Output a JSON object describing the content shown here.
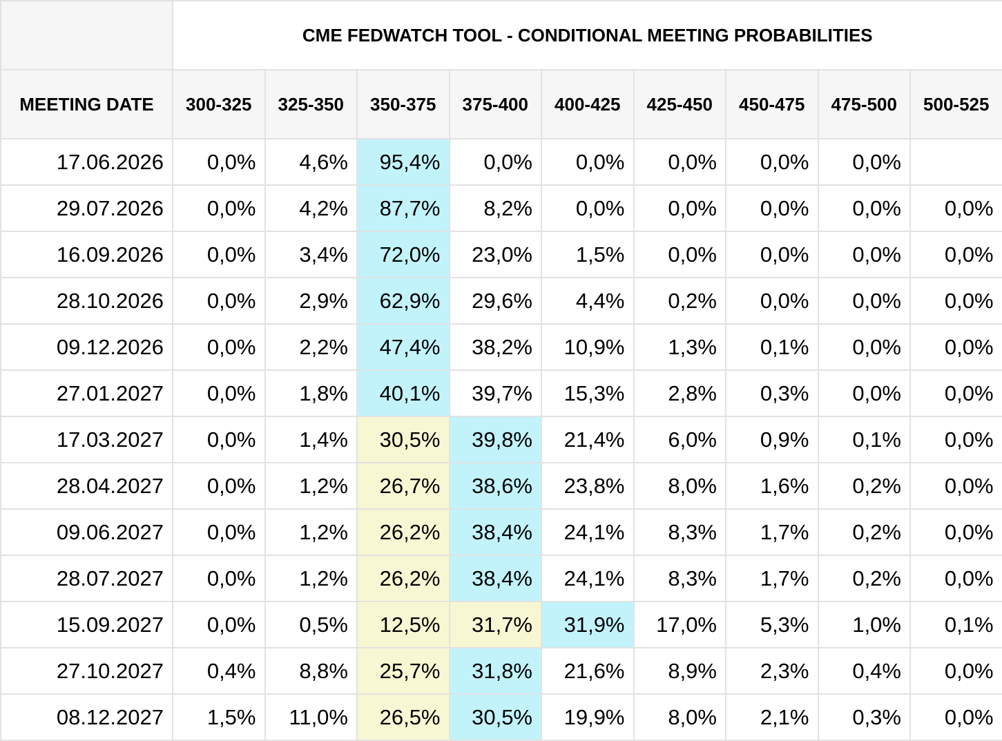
{
  "title": "CME FEDWATCH TOOL - CONDITIONAL MEETING PROBABILITIES",
  "columns": {
    "date": "MEETING DATE",
    "ranges": [
      "300-325",
      "325-350",
      "350-375",
      "375-400",
      "400-425",
      "425-450",
      "450-475",
      "475-500",
      "500-525"
    ]
  },
  "colors": {
    "max_highlight": "#c2f3fb",
    "secondary_highlight": "#f8f7d3",
    "header_bg": "#f6f6f6",
    "border": "#e2e2e2"
  },
  "rows": [
    {
      "date": "17.06.2026",
      "values": [
        "0,0%",
        "4,6%",
        "95,4%",
        "0,0%",
        "0,0%",
        "0,0%",
        "0,0%",
        "0,0%",
        ""
      ],
      "highlight": [
        "",
        "",
        "cyan",
        "",
        "",
        "",
        "",
        "",
        ""
      ]
    },
    {
      "date": "29.07.2026",
      "values": [
        "0,0%",
        "4,2%",
        "87,7%",
        "8,2%",
        "0,0%",
        "0,0%",
        "0,0%",
        "0,0%",
        "0,0%"
      ],
      "highlight": [
        "",
        "",
        "cyan",
        "",
        "",
        "",
        "",
        "",
        ""
      ]
    },
    {
      "date": "16.09.2026",
      "values": [
        "0,0%",
        "3,4%",
        "72,0%",
        "23,0%",
        "1,5%",
        "0,0%",
        "0,0%",
        "0,0%",
        "0,0%"
      ],
      "highlight": [
        "",
        "",
        "cyan",
        "",
        "",
        "",
        "",
        "",
        ""
      ]
    },
    {
      "date": "28.10.2026",
      "values": [
        "0,0%",
        "2,9%",
        "62,9%",
        "29,6%",
        "4,4%",
        "0,2%",
        "0,0%",
        "0,0%",
        "0,0%"
      ],
      "highlight": [
        "",
        "",
        "cyan",
        "",
        "",
        "",
        "",
        "",
        ""
      ]
    },
    {
      "date": "09.12.2026",
      "values": [
        "0,0%",
        "2,2%",
        "47,4%",
        "38,2%",
        "10,9%",
        "1,3%",
        "0,1%",
        "0,0%",
        "0,0%"
      ],
      "highlight": [
        "",
        "",
        "cyan",
        "",
        "",
        "",
        "",
        "",
        ""
      ]
    },
    {
      "date": "27.01.2027",
      "values": [
        "0,0%",
        "1,8%",
        "40,1%",
        "39,7%",
        "15,3%",
        "2,8%",
        "0,3%",
        "0,0%",
        "0,0%"
      ],
      "highlight": [
        "",
        "",
        "cyan",
        "",
        "",
        "",
        "",
        "",
        ""
      ]
    },
    {
      "date": "17.03.2027",
      "values": [
        "0,0%",
        "1,4%",
        "30,5%",
        "39,8%",
        "21,4%",
        "6,0%",
        "0,9%",
        "0,1%",
        "0,0%"
      ],
      "highlight": [
        "",
        "",
        "yellow",
        "cyan",
        "",
        "",
        "",
        "",
        ""
      ]
    },
    {
      "date": "28.04.2027",
      "values": [
        "0,0%",
        "1,2%",
        "26,7%",
        "38,6%",
        "23,8%",
        "8,0%",
        "1,6%",
        "0,2%",
        "0,0%"
      ],
      "highlight": [
        "",
        "",
        "yellow",
        "cyan",
        "",
        "",
        "",
        "",
        ""
      ]
    },
    {
      "date": "09.06.2027",
      "values": [
        "0,0%",
        "1,2%",
        "26,2%",
        "38,4%",
        "24,1%",
        "8,3%",
        "1,7%",
        "0,2%",
        "0,0%"
      ],
      "highlight": [
        "",
        "",
        "yellow",
        "cyan",
        "",
        "",
        "",
        "",
        ""
      ]
    },
    {
      "date": "28.07.2027",
      "values": [
        "0,0%",
        "1,2%",
        "26,2%",
        "38,4%",
        "24,1%",
        "8,3%",
        "1,7%",
        "0,2%",
        "0,0%"
      ],
      "highlight": [
        "",
        "",
        "yellow",
        "cyan",
        "",
        "",
        "",
        "",
        ""
      ]
    },
    {
      "date": "15.09.2027",
      "values": [
        "0,0%",
        "0,5%",
        "12,5%",
        "31,7%",
        "31,9%",
        "17,0%",
        "5,3%",
        "1,0%",
        "0,1%"
      ],
      "highlight": [
        "",
        "",
        "yellow",
        "yellow",
        "cyan",
        "",
        "",
        "",
        ""
      ]
    },
    {
      "date": "27.10.2027",
      "values": [
        "0,4%",
        "8,8%",
        "25,7%",
        "31,8%",
        "21,6%",
        "8,9%",
        "2,3%",
        "0,4%",
        "0,0%"
      ],
      "highlight": [
        "",
        "",
        "yellow",
        "cyan",
        "",
        "",
        "",
        "",
        ""
      ]
    },
    {
      "date": "08.12.2027",
      "values": [
        "1,5%",
        "11,0%",
        "26,5%",
        "30,5%",
        "19,9%",
        "8,0%",
        "2,1%",
        "0,3%",
        "0,0%"
      ],
      "highlight": [
        "",
        "",
        "yellow",
        "cyan",
        "",
        "",
        "",
        "",
        ""
      ]
    }
  ]
}
